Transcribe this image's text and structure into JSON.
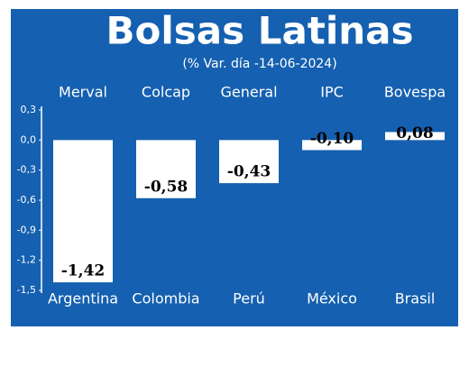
{
  "chart_data": {
    "type": "bar",
    "title": "Bolsas Latinas",
    "subtitle": "(% Var. día -14-06-2024)",
    "indices": [
      "Merval",
      "Colcap",
      "General",
      "IPC",
      "Bovespa"
    ],
    "categories": [
      "Argentina",
      "Colombia",
      "Perú",
      "México",
      "Brasil"
    ],
    "values": [
      -1.42,
      -0.58,
      -0.43,
      -0.1,
      0.08
    ],
    "value_labels": [
      "-1,42",
      "-0,58",
      "-0,43",
      "-0,10",
      "0,08"
    ],
    "color": "#ffffff",
    "background": "#1560b0",
    "ylim": [
      -1.5,
      0.3
    ],
    "yticks": [
      {
        "value": 0.3,
        "label": "0,3"
      },
      {
        "value": 0,
        "label": "0,0"
      },
      {
        "value": -0.3,
        "label": "-0,3"
      },
      {
        "value": -0.6,
        "label": "-0,6"
      },
      {
        "value": -0.9,
        "label": "-0,9"
      },
      {
        "value": -1.2,
        "label": "-1,2"
      },
      {
        "value": -1.5,
        "label": "-1,5"
      }
    ]
  }
}
